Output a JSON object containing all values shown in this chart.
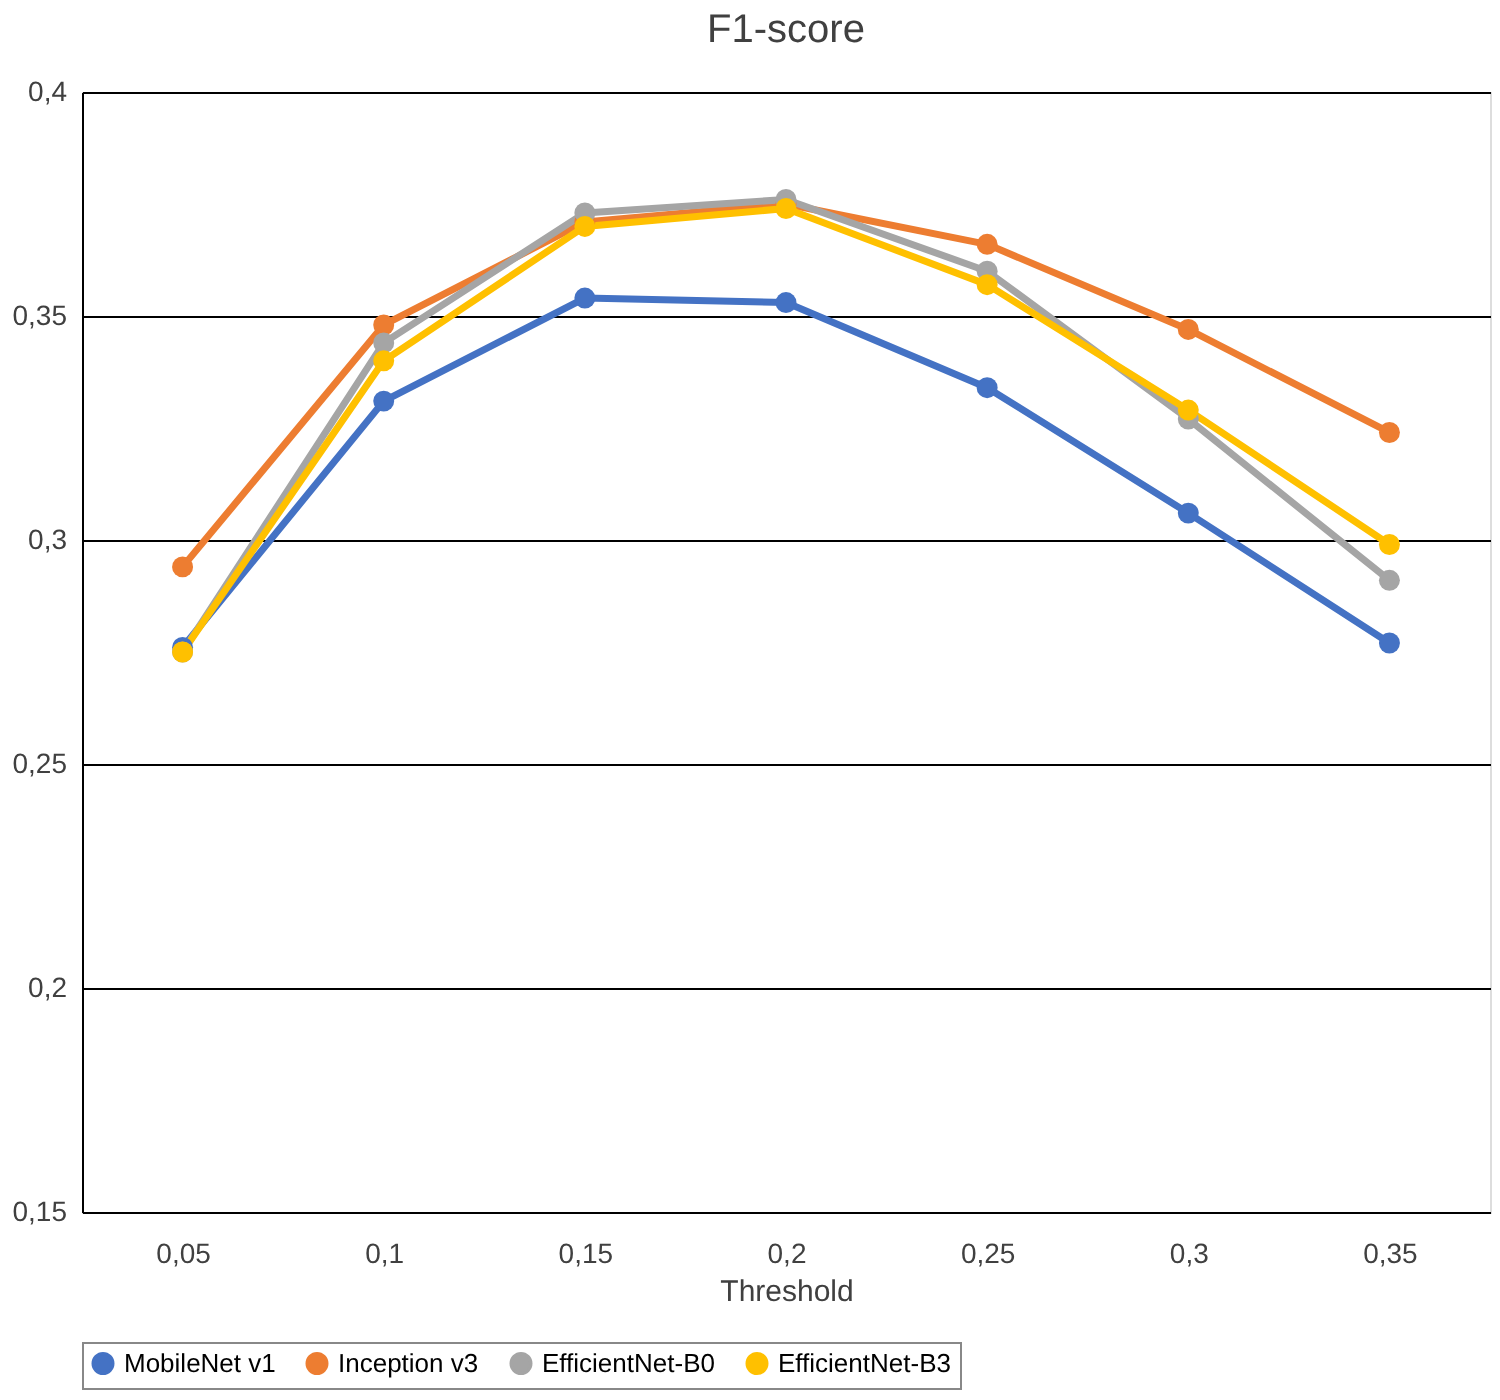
{
  "chart_data": {
    "type": "line",
    "title": "F1-score",
    "xlabel": "Threshold",
    "categories": [
      "0,05",
      "0,1",
      "0,15",
      "0,2",
      "0,25",
      "0,3",
      "0,35"
    ],
    "series": [
      {
        "name": "MobileNet v1",
        "color": "#4472c4",
        "values": [
          0.276,
          0.331,
          0.354,
          0.353,
          0.334,
          0.306,
          0.277
        ]
      },
      {
        "name": "Inception v3",
        "color": "#ed7d31",
        "values": [
          0.294,
          0.348,
          0.371,
          0.375,
          0.366,
          0.347,
          0.324
        ]
      },
      {
        "name": "EfficientNet-B0",
        "color": "#a5a5a5",
        "values": [
          0.275,
          0.344,
          0.373,
          0.376,
          0.36,
          0.327,
          0.291
        ]
      },
      {
        "name": "EfficientNet-B3",
        "color": "#ffc000",
        "values": [
          0.275,
          0.34,
          0.37,
          0.374,
          0.357,
          0.329,
          0.299
        ]
      }
    ],
    "ylim": [
      0.15,
      0.4
    ],
    "yticks": [
      {
        "value": 0.15,
        "label": "0,15"
      },
      {
        "value": 0.2,
        "label": "0,2"
      },
      {
        "value": 0.25,
        "label": "0,25"
      },
      {
        "value": 0.3,
        "label": "0,3"
      },
      {
        "value": 0.35,
        "label": "0,35"
      },
      {
        "value": 0.4,
        "label": "0,4"
      }
    ],
    "grid": "y",
    "legend": "bottom",
    "marker": "circle",
    "line_style": "solid"
  }
}
